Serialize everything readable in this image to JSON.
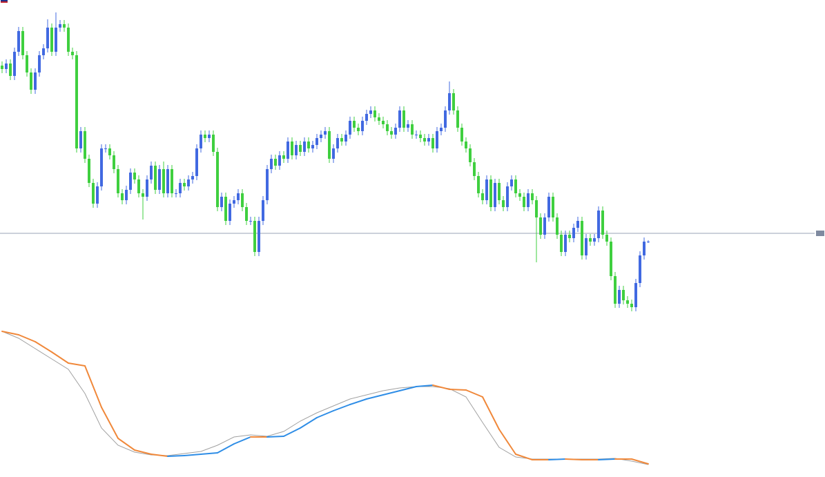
{
  "chart_data": {
    "type": "candlestick",
    "up_color": "#4169e1",
    "down_color": "#3fcf3f",
    "ylim": [
      230,
      700
    ],
    "price_line": 362,
    "price_line_color": "#9aa3b5",
    "open": [
      605,
      600,
      608,
      590,
      625,
      655,
      620,
      595,
      570,
      595,
      620,
      630,
      660,
      625,
      660,
      665,
      660,
      625,
      620,
      485,
      510,
      470,
      435,
      405,
      430,
      485,
      485,
      475,
      455,
      420,
      410,
      425,
      450,
      440,
      420,
      415,
      440,
      460,
      425,
      455,
      420,
      455,
      420,
      420,
      435,
      430,
      440,
      445,
      485,
      505,
      500,
      505,
      480,
      400,
      415,
      380,
      405,
      410,
      420,
      400,
      380,
      380,
      335,
      380,
      410,
      455,
      470,
      460,
      475,
      470,
      495,
      475,
      490,
      480,
      495,
      485,
      490,
      500,
      505,
      510,
      470,
      485,
      500,
      495,
      505,
      525,
      515,
      510,
      525,
      535,
      540,
      530,
      525,
      520,
      510,
      505,
      515,
      540,
      515,
      520,
      505,
      505,
      500,
      495,
      500,
      485,
      510,
      515,
      540,
      565,
      540,
      515,
      495,
      485,
      465,
      445,
      420,
      410,
      440,
      400,
      435,
      410,
      400,
      430,
      440,
      420,
      415,
      400,
      420,
      410,
      385,
      360,
      385,
      415,
      385,
      360,
      335,
      360,
      355,
      370,
      380,
      330,
      355,
      350,
      355,
      395,
      360,
      350,
      300,
      260,
      280,
      265,
      260,
      255,
      290,
      330,
      350
    ],
    "high": [
      611,
      614,
      614,
      631,
      661,
      661,
      626,
      601,
      601,
      626,
      636,
      672,
      666,
      682,
      671,
      671,
      666,
      631,
      626,
      516,
      516,
      476,
      441,
      436,
      491,
      491,
      491,
      481,
      461,
      426,
      431,
      456,
      456,
      446,
      426,
      446,
      466,
      466,
      461,
      466,
      461,
      461,
      426,
      441,
      441,
      446,
      451,
      491,
      511,
      511,
      511,
      511,
      486,
      421,
      421,
      411,
      416,
      426,
      426,
      406,
      386,
      386,
      386,
      416,
      461,
      476,
      476,
      481,
      481,
      501,
      501,
      496,
      496,
      501,
      501,
      496,
      506,
      511,
      516,
      516,
      491,
      506,
      506,
      511,
      531,
      531,
      521,
      531,
      541,
      546,
      546,
      536,
      531,
      526,
      516,
      521,
      546,
      546,
      526,
      526,
      511,
      511,
      506,
      506,
      506,
      516,
      521,
      546,
      582,
      571,
      546,
      521,
      501,
      491,
      471,
      451,
      426,
      446,
      446,
      441,
      441,
      416,
      436,
      446,
      446,
      426,
      421,
      426,
      426,
      416,
      391,
      391,
      421,
      421,
      391,
      366,
      366,
      366,
      376,
      386,
      386,
      361,
      361,
      361,
      401,
      401,
      366,
      356,
      306,
      286,
      286,
      271,
      266,
      296,
      336,
      356,
      352
    ],
    "low": [
      594,
      594,
      584,
      584,
      619,
      614,
      589,
      564,
      564,
      589,
      614,
      624,
      619,
      619,
      654,
      654,
      619,
      614,
      479,
      479,
      464,
      429,
      399,
      399,
      424,
      479,
      469,
      449,
      414,
      404,
      404,
      419,
      434,
      414,
      382,
      409,
      434,
      419,
      419,
      414,
      414,
      414,
      414,
      414,
      424,
      424,
      434,
      439,
      479,
      494,
      494,
      474,
      394,
      394,
      374,
      374,
      399,
      404,
      394,
      374,
      374,
      329,
      329,
      374,
      404,
      449,
      454,
      454,
      464,
      464,
      469,
      469,
      474,
      474,
      479,
      479,
      484,
      494,
      499,
      464,
      464,
      479,
      489,
      489,
      499,
      509,
      504,
      504,
      519,
      529,
      524,
      519,
      514,
      504,
      499,
      499,
      509,
      509,
      509,
      499,
      499,
      494,
      489,
      489,
      479,
      479,
      504,
      509,
      534,
      534,
      509,
      489,
      479,
      459,
      439,
      414,
      404,
      404,
      394,
      394,
      404,
      394,
      394,
      424,
      414,
      409,
      394,
      394,
      404,
      320,
      354,
      354,
      379,
      379,
      354,
      329,
      329,
      349,
      349,
      364,
      324,
      324,
      344,
      344,
      349,
      354,
      344,
      294,
      254,
      254,
      259,
      254,
      249,
      249,
      284,
      324,
      348
    ],
    "close": [
      600,
      608,
      590,
      625,
      655,
      620,
      595,
      570,
      595,
      620,
      630,
      660,
      625,
      660,
      665,
      660,
      625,
      620,
      485,
      510,
      470,
      435,
      405,
      430,
      485,
      485,
      475,
      455,
      420,
      410,
      425,
      450,
      440,
      420,
      415,
      440,
      460,
      425,
      455,
      420,
      455,
      420,
      420,
      435,
      430,
      440,
      445,
      485,
      505,
      500,
      505,
      480,
      400,
      415,
      380,
      405,
      410,
      420,
      400,
      380,
      380,
      335,
      380,
      410,
      455,
      470,
      460,
      475,
      470,
      495,
      475,
      490,
      480,
      495,
      485,
      490,
      500,
      505,
      510,
      470,
      485,
      500,
      495,
      505,
      525,
      515,
      510,
      525,
      535,
      540,
      530,
      525,
      520,
      510,
      505,
      515,
      540,
      515,
      520,
      505,
      505,
      500,
      495,
      500,
      485,
      510,
      515,
      540,
      565,
      540,
      515,
      495,
      485,
      465,
      445,
      420,
      410,
      440,
      400,
      435,
      410,
      400,
      430,
      440,
      420,
      415,
      400,
      420,
      410,
      385,
      360,
      385,
      415,
      385,
      360,
      335,
      360,
      355,
      370,
      380,
      330,
      355,
      350,
      355,
      395,
      360,
      350,
      300,
      260,
      280,
      265,
      260,
      255,
      290,
      330,
      350,
      350
    ],
    "indicator": {
      "ylim": [
        0,
        210
      ],
      "rise_color": "#2e8de6",
      "fall_color": "#f0883a",
      "signal_color": "#a0a0a0",
      "x": [
        0,
        4,
        8,
        12,
        16,
        20,
        24,
        28,
        32,
        36,
        40,
        44,
        48,
        52,
        56,
        60,
        64,
        68,
        72,
        76,
        80,
        84,
        88,
        92,
        96,
        100,
        104,
        108,
        112,
        116,
        120,
        124,
        128,
        132,
        136,
        140,
        144,
        148,
        152,
        156
      ],
      "main": [
        200,
        195,
        185,
        170,
        154,
        150,
        90,
        45,
        28,
        22,
        19,
        20,
        22,
        24,
        37,
        47,
        47,
        48,
        60,
        75,
        85,
        94,
        102,
        108,
        114,
        120,
        122,
        116,
        115,
        105,
        58,
        22,
        14,
        14,
        15,
        14,
        14,
        15,
        15,
        8
      ],
      "signal": [
        200,
        190,
        175,
        160,
        145,
        110,
        60,
        35,
        25,
        21,
        20,
        23,
        26,
        35,
        47,
        50,
        48,
        55,
        70,
        82,
        92,
        102,
        108,
        114,
        118,
        120,
        120,
        117,
        105,
        68,
        32,
        18,
        15,
        15,
        15,
        15,
        15,
        16,
        12,
        7
      ]
    }
  }
}
